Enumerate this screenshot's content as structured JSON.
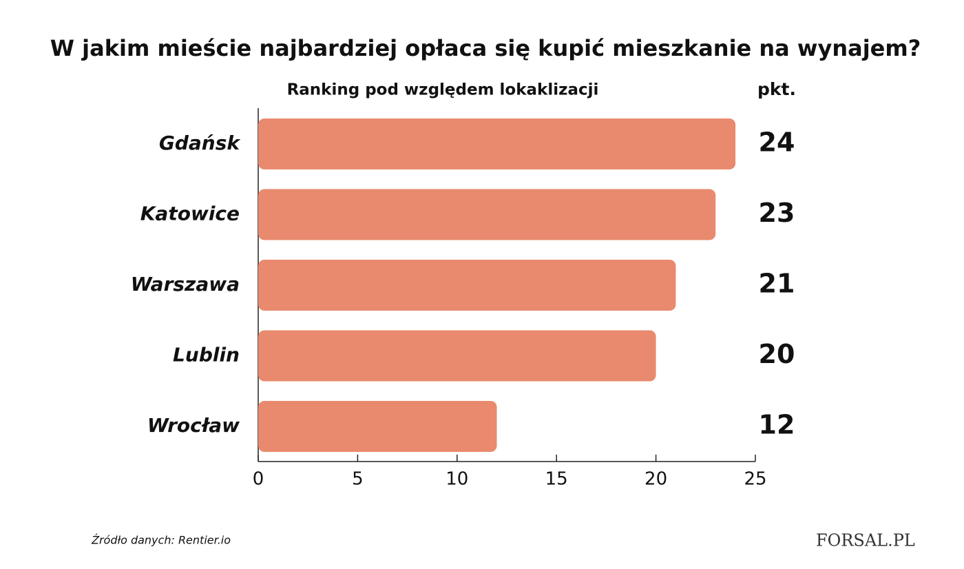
{
  "chart_data": {
    "type": "bar",
    "orientation": "horizontal",
    "title": "W jakim mieście najbardziej opłaca się kupić mieszkanie na wynajem?",
    "subtitle": "Ranking pod względem lokaklizacji",
    "value_unit": "pkt.",
    "categories": [
      "Gdańsk",
      "Katowice",
      "Warszawa",
      "Lublin",
      "Wrocław"
    ],
    "values": [
      24,
      23,
      21,
      20,
      12
    ],
    "color": "#e98a6e",
    "xlim": [
      0,
      25
    ],
    "xticks": [
      0,
      5,
      10,
      15,
      20,
      25
    ],
    "source": "Źródło danych:  Rentier.io",
    "logo": "FORSAL.PL"
  }
}
